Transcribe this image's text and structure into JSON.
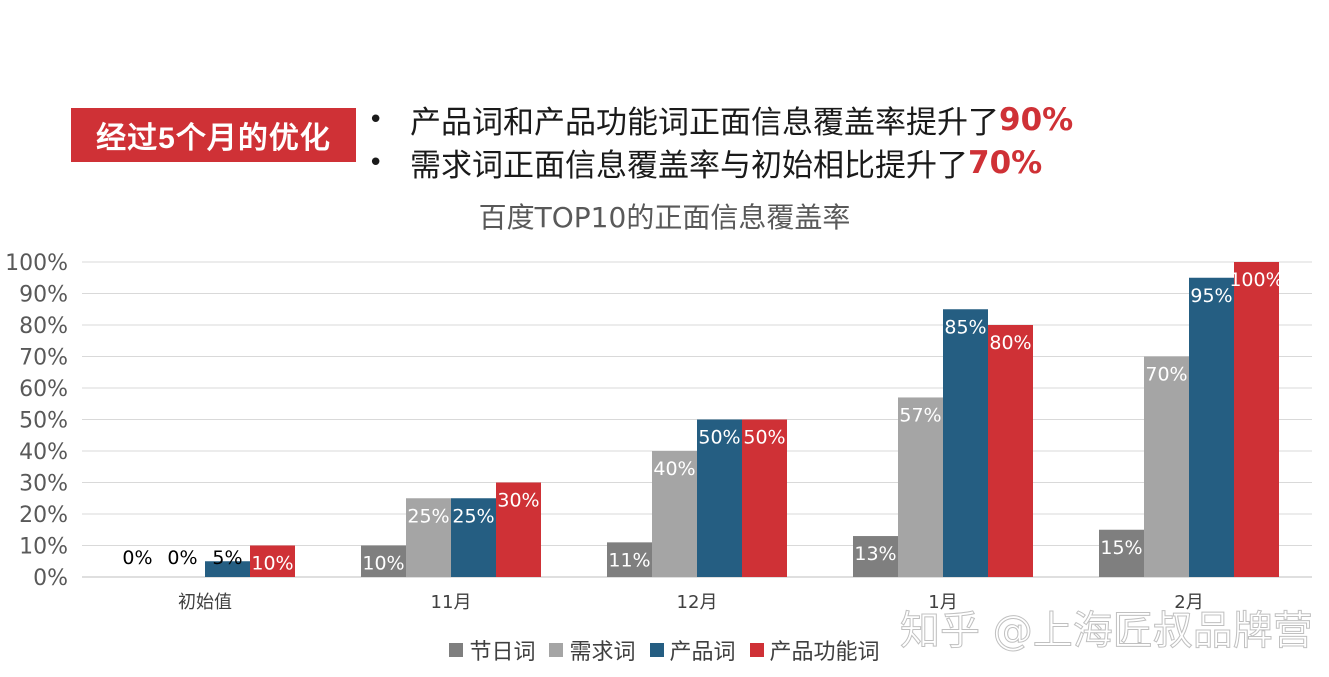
{
  "tag_label": "经过5个月的优化",
  "bullets": [
    {
      "symbol": "•",
      "text": "产品词和产品功能词正面信息覆盖率提升了",
      "highlight": "90%"
    },
    {
      "symbol": "•",
      "text": "需求词正面信息覆盖率与初始相比提升了",
      "highlight": "70%"
    }
  ],
  "watermark": "知乎 @上海匠叔品牌营",
  "colors": {
    "accent": "#cf3136"
  },
  "chart_data": {
    "type": "bar",
    "title": "百度TOP10的正面信息覆盖率",
    "categories": [
      "初始值",
      "11月",
      "12月",
      "1月",
      "2月"
    ],
    "ylim": [
      0,
      100
    ],
    "yticks": [
      "0%",
      "10%",
      "20%",
      "30%",
      "40%",
      "50%",
      "60%",
      "70%",
      "80%",
      "90%",
      "100%"
    ],
    "grid": true,
    "legend_position": "bottom",
    "series": [
      {
        "name": "节日词",
        "color": "#7f7f7f",
        "values": [
          0,
          10,
          11,
          13,
          15
        ],
        "labels": [
          "0%",
          "10%",
          "11%",
          "13%",
          "15%"
        ]
      },
      {
        "name": "需求词",
        "color": "#a5a5a5",
        "values": [
          0,
          25,
          40,
          57,
          70
        ],
        "labels": [
          "0%",
          "25%",
          "40%",
          "57%",
          "70%"
        ]
      },
      {
        "name": "产品词",
        "color": "#255e82",
        "values": [
          5,
          25,
          50,
          85,
          95
        ],
        "labels": [
          "5%",
          "25%",
          "50%",
          "85%",
          "95%"
        ]
      },
      {
        "name": "产品功能词",
        "color": "#cf3136",
        "values": [
          10,
          30,
          50,
          80,
          100
        ],
        "labels": [
          "10%",
          "30%",
          "50%",
          "80%",
          "100%"
        ]
      }
    ]
  }
}
